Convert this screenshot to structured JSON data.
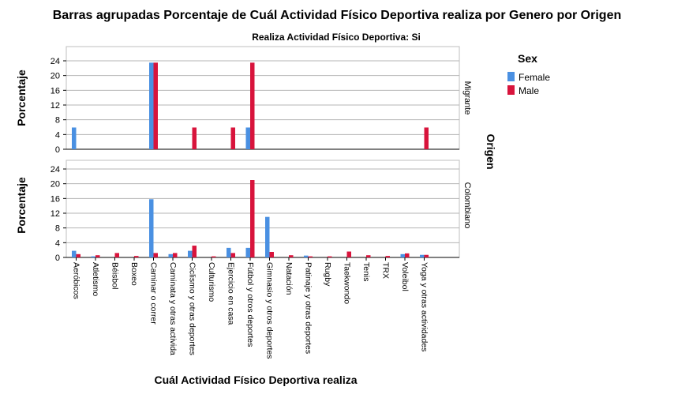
{
  "chart_data": {
    "type": "bar",
    "title": "Barras agrupadas Porcentaje de Cuál Actividad Físico Deportiva realiza por Genero por Origen",
    "subtitle": "Realiza Actividad Físico Deportiva: Si",
    "xlabel": "Cuál Actividad Físico Deportiva realiza",
    "ylabel": "Porcentaje",
    "row_label": "Origen",
    "legend_title": "Sex",
    "legend_position": "right",
    "ylim": [
      0,
      28
    ],
    "yticks": [
      0,
      4,
      8,
      12,
      16,
      20,
      24
    ],
    "grid": true,
    "colors": {
      "Female": "#4a90e2",
      "Male": "#d8143c"
    },
    "categories": [
      "Aeróbicos",
      "Atletismo",
      "Béisbol",
      "Boxeo",
      "Caminar o correr",
      "Caminata y otras activida",
      "Ciclismo y otras deportes",
      "Culturismo",
      "Ejercicio en casa",
      "Fútbol y otros deportes",
      "Gimnasio y otros deportes",
      "Natación",
      "Patinaje y otras deportes",
      "Rugby",
      "Taekwondo",
      "Tenis",
      "TRX",
      "Voleibol",
      "Yoga y otras actividades"
    ],
    "panels": [
      {
        "name": "Migrante",
        "series": [
          {
            "name": "Female",
            "values": [
              5.9,
              0,
              0,
              0,
              23.5,
              0,
              0,
              0,
              0,
              5.9,
              0,
              0,
              0,
              0,
              0,
              0,
              0,
              0,
              0
            ]
          },
          {
            "name": "Male",
            "values": [
              0,
              0,
              0,
              0,
              23.5,
              0,
              5.9,
              0,
              5.9,
              23.5,
              0,
              0,
              0,
              0,
              0,
              0,
              0,
              0,
              5.9
            ]
          }
        ]
      },
      {
        "name": "Colombiano",
        "series": [
          {
            "name": "Female",
            "values": [
              1.8,
              0.3,
              0,
              0,
              15.8,
              0.9,
              1.8,
              0,
              2.6,
              2.6,
              11.0,
              0,
              0.5,
              0,
              0,
              0,
              0,
              0.9,
              0.7
            ]
          },
          {
            "name": "Male",
            "values": [
              0.9,
              0.6,
              1.2,
              0.4,
              1.2,
              1.2,
              3.2,
              0.3,
              1.2,
              21.0,
              1.5,
              0.6,
              0.3,
              0.3,
              1.6,
              0.6,
              0.4,
              1.1,
              0.7
            ]
          }
        ]
      }
    ]
  }
}
